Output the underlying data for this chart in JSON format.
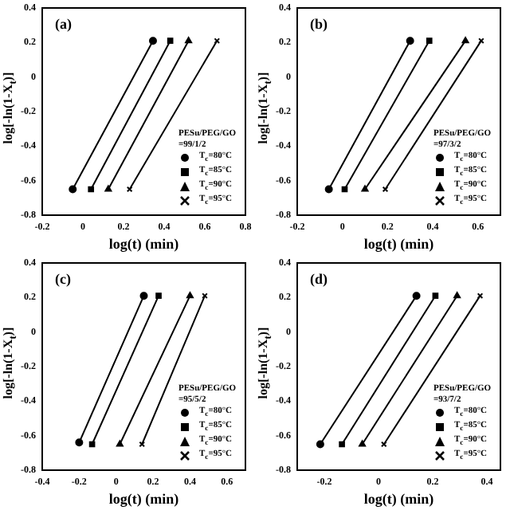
{
  "chart_data": [
    {
      "type": "line",
      "title": "(a)",
      "xlabel": "log(t) (min)",
      "ylabel": "log[-ln(1-X$_{t}$)]",
      "legend_title": "PESu/PEG/GO =99/1/2",
      "legend": "bottom right",
      "grid": false,
      "xlim": [
        -0.2,
        0.8
      ],
      "xticks": [
        -0.2,
        0,
        0.2,
        0.4,
        0.6,
        0.8
      ],
      "ylim": [
        -0.8,
        0.4
      ],
      "yticks": [
        -0.8,
        -0.6,
        -0.4,
        -0.2,
        0,
        0.2,
        0.4
      ],
      "series": [
        {
          "name": "T$_{c}$=80°C",
          "color": "#000000",
          "marker": "circle",
          "x": [
            -0.05,
            0.345
          ],
          "values": [
            -0.65,
            0.21
          ]
        },
        {
          "name": "T$_{c}$=85°C",
          "color": "#000000",
          "marker": "square",
          "x": [
            0.04,
            0.43
          ],
          "values": [
            -0.65,
            0.21
          ]
        },
        {
          "name": "T$_{c}$=90°C",
          "color": "#000000",
          "marker": "triangle",
          "x": [
            0.125,
            0.52
          ],
          "values": [
            -0.65,
            0.21
          ]
        },
        {
          "name": "T$_{c}$=95°C",
          "color": "#000000",
          "marker": "cross",
          "x": [
            0.23,
            0.66
          ],
          "values": [
            -0.65,
            0.21
          ]
        }
      ]
    },
    {
      "type": "line",
      "title": "(b)",
      "xlabel": "log(t) (min)",
      "ylabel": "log[-ln(1-X$_{t}$)]",
      "legend_title": "PESu/PEG/GO =97/3/2",
      "legend": "bottom right",
      "grid": false,
      "xlim": [
        -0.2,
        0.7
      ],
      "xticks": [
        -0.2,
        0,
        0.2,
        0.4,
        0.6
      ],
      "ylim": [
        -0.8,
        0.4
      ],
      "yticks": [
        -0.8,
        -0.6,
        -0.4,
        -0.2,
        0,
        0.2,
        0.4
      ],
      "series": [
        {
          "name": "T$_{c}$=80°C",
          "color": "#000000",
          "marker": "circle",
          "x": [
            -0.06,
            0.3
          ],
          "values": [
            -0.65,
            0.21
          ]
        },
        {
          "name": "T$_{c}$=85°C",
          "color": "#000000",
          "marker": "square",
          "x": [
            0.01,
            0.385
          ],
          "values": [
            -0.65,
            0.21
          ]
        },
        {
          "name": "T$_{c}$=90°C",
          "color": "#000000",
          "marker": "triangle",
          "x": [
            0.1,
            0.545
          ],
          "values": [
            -0.65,
            0.21
          ]
        },
        {
          "name": "T$_{c}$=95°C",
          "color": "#000000",
          "marker": "cross",
          "x": [
            0.19,
            0.615
          ],
          "values": [
            -0.65,
            0.21
          ]
        }
      ]
    },
    {
      "type": "line",
      "title": "(c)",
      "xlabel": "log(t) (min)",
      "ylabel": "log[-ln(1-X$_{t}$)]",
      "legend_title": "PESu/PEG/GO =95/5/2",
      "legend": "bottom right",
      "grid": false,
      "xlim": [
        -0.4,
        0.7
      ],
      "xticks": [
        -0.4,
        -0.2,
        0,
        0.2,
        0.4,
        0.6
      ],
      "ylim": [
        -0.8,
        0.4
      ],
      "yticks": [
        -0.8,
        -0.6,
        -0.4,
        -0.2,
        0,
        0.2,
        0.4
      ],
      "series": [
        {
          "name": "T$_{c}$=80°C",
          "color": "#000000",
          "marker": "circle",
          "x": [
            -0.2,
            0.15
          ],
          "values": [
            -0.64,
            0.21
          ]
        },
        {
          "name": "T$_{c}$=85°C",
          "color": "#000000",
          "marker": "square",
          "x": [
            -0.13,
            0.23
          ],
          "values": [
            -0.65,
            0.21
          ]
        },
        {
          "name": "T$_{c}$=90°C",
          "color": "#000000",
          "marker": "triangle",
          "x": [
            0.02,
            0.4
          ],
          "values": [
            -0.65,
            0.21
          ]
        },
        {
          "name": "T$_{c}$=95°C",
          "color": "#000000",
          "marker": "cross",
          "x": [
            0.14,
            0.48
          ],
          "values": [
            -0.65,
            0.21
          ]
        }
      ]
    },
    {
      "type": "line",
      "title": "(d)",
      "xlabel": "log(t) (min)",
      "ylabel": "log[-ln(1-X$_{t}$)]",
      "legend_title": "PESu/PEG/GO =93/7/2",
      "legend": "bottom right",
      "grid": false,
      "xlim": [
        -0.3,
        0.45
      ],
      "xticks": [
        -0.2,
        0,
        0.2,
        0.4
      ],
      "ylim": [
        -0.8,
        0.4
      ],
      "yticks": [
        -0.8,
        -0.6,
        -0.4,
        -0.2,
        0,
        0.2,
        0.4
      ],
      "series": [
        {
          "name": "T$_{c}$=80°C",
          "color": "#000000",
          "marker": "circle",
          "x": [
            -0.215,
            0.14
          ],
          "values": [
            -0.65,
            0.21
          ]
        },
        {
          "name": "T$_{c}$=85°C",
          "color": "#000000",
          "marker": "square",
          "x": [
            -0.135,
            0.21
          ],
          "values": [
            -0.65,
            0.21
          ]
        },
        {
          "name": "T$_{c}$=90°C",
          "color": "#000000",
          "marker": "triangle",
          "x": [
            -0.06,
            0.29
          ],
          "values": [
            -0.65,
            0.21
          ]
        },
        {
          "name": "T$_{c}$=95°C",
          "color": "#000000",
          "marker": "cross",
          "x": [
            0.02,
            0.375
          ],
          "values": [
            -0.65,
            0.21
          ]
        }
      ]
    }
  ]
}
